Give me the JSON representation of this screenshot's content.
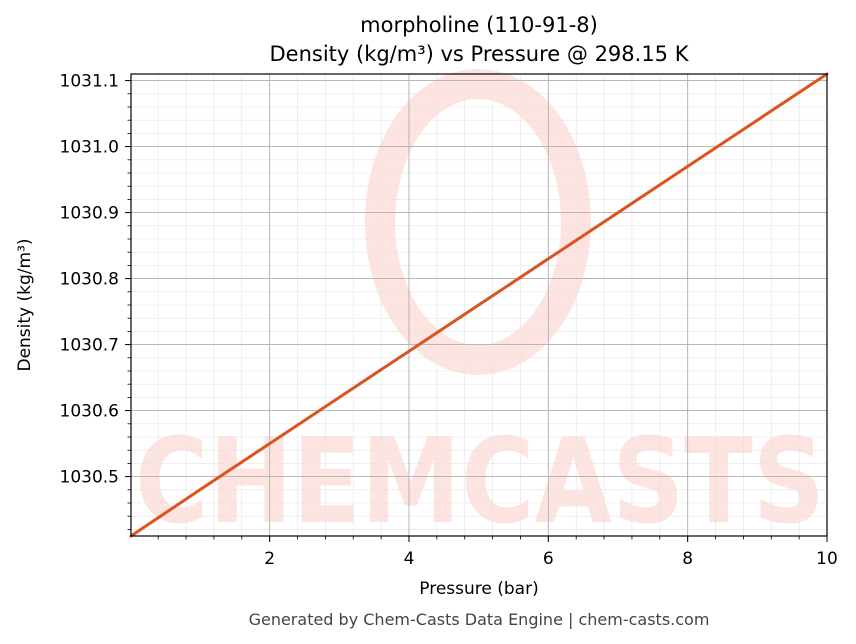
{
  "chart_data": {
    "type": "line",
    "title": "morpholine (110-91-8)",
    "subtitle": "Density (kg/m³) vs Pressure @ 298.15 K",
    "xlabel": "Pressure (bar)",
    "ylabel": "Density (kg/m³)",
    "xlim": [
      0.01,
      10
    ],
    "ylim": [
      1030.41,
      1031.11
    ],
    "x_ticks": [
      2,
      4,
      6,
      8,
      10
    ],
    "y_ticks": [
      1030.5,
      1030.6,
      1030.7,
      1030.8,
      1030.9,
      1031.0,
      1031.1
    ],
    "x_tick_labels": [
      "2",
      "4",
      "6",
      "8",
      "10"
    ],
    "y_tick_labels": [
      "1030.5",
      "1030.6",
      "1030.7",
      "1030.8",
      "1030.9",
      "1031.0",
      "1031.1"
    ],
    "grid": true,
    "series": [
      {
        "x": [
          0.01,
          1,
          2,
          3,
          4,
          5,
          6,
          7,
          8,
          9,
          10
        ],
        "y": [
          1030.41,
          1030.48,
          1030.55,
          1030.62,
          1030.69,
          1030.76,
          1030.83,
          1030.9,
          1030.97,
          1031.04,
          1031.11
        ],
        "color": "#d9541e"
      }
    ]
  },
  "watermark": {
    "text": "CHEMCASTS",
    "color": "#fde4e0"
  },
  "footer": "Generated by Chem-Casts Data Engine | chem-casts.com"
}
